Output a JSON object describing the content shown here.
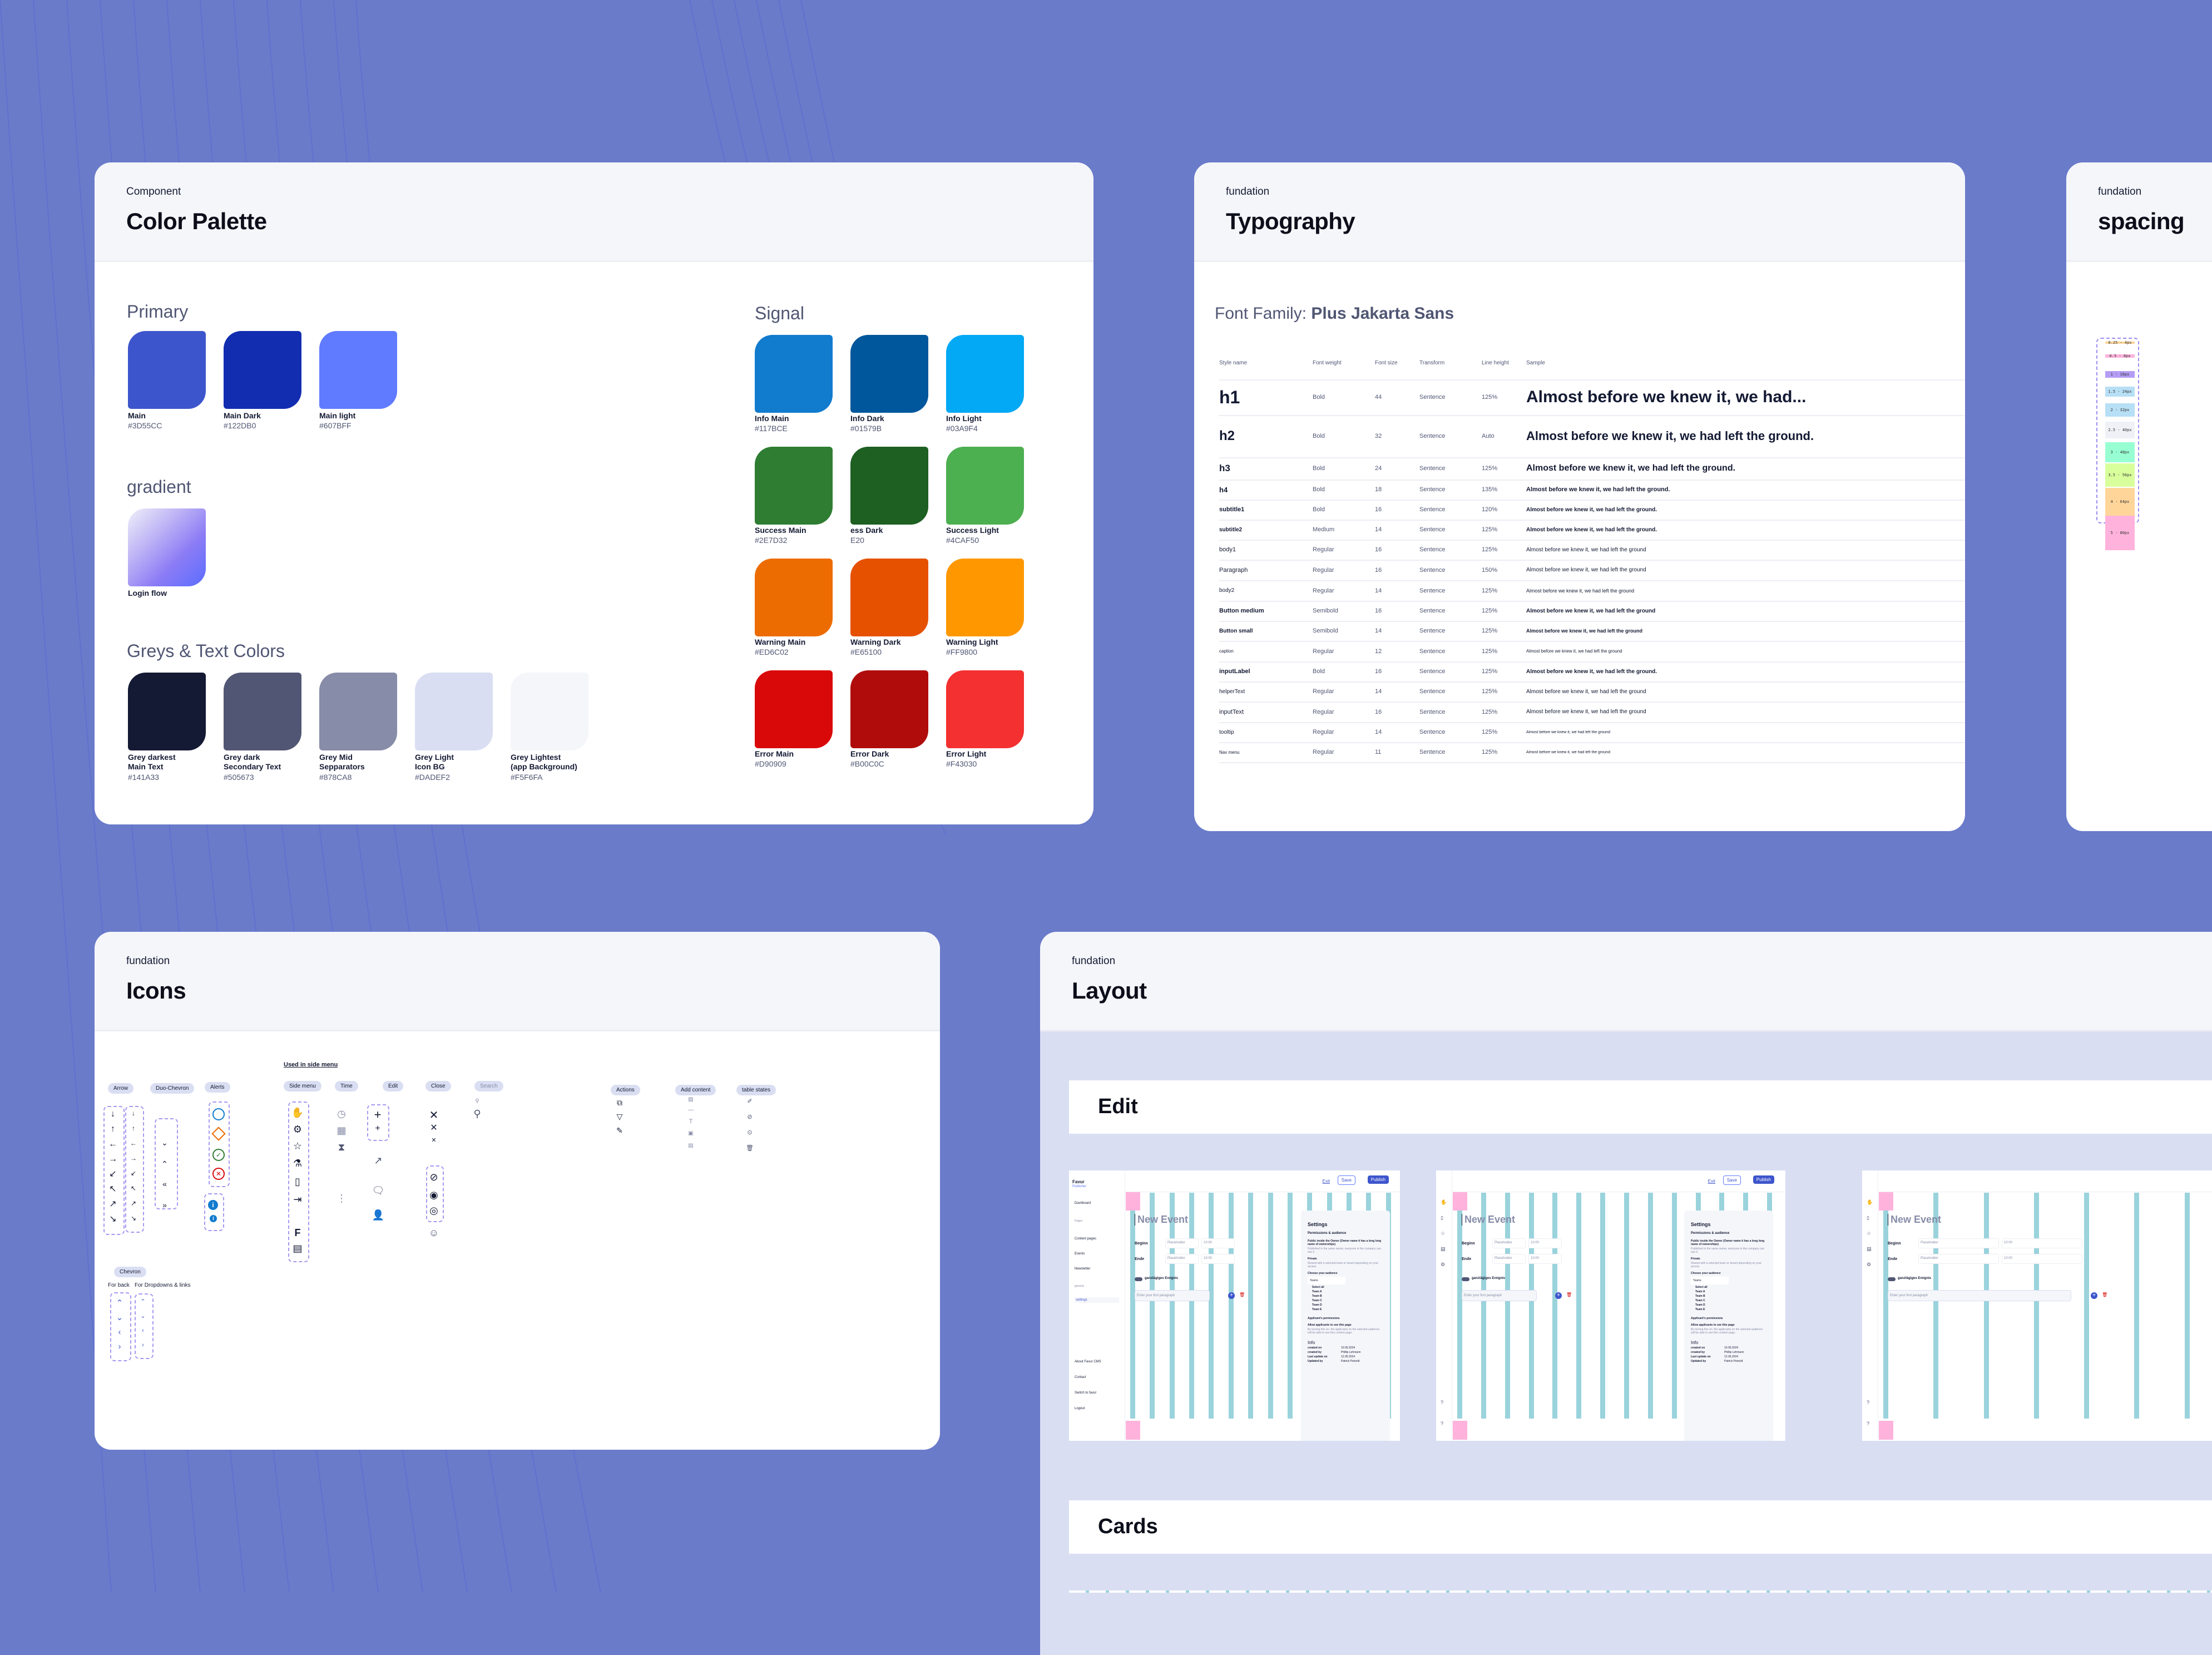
{
  "background_color": "#6A7BCA",
  "color_palette": {
    "kicker": "Component",
    "title": "Color Palette",
    "primary": {
      "title": "Primary",
      "swatches": [
        {
          "name": "Main",
          "hex": "#3D55CC"
        },
        {
          "name": "Main Dark",
          "hex": "#122DB0"
        },
        {
          "name": "Main light",
          "hex": "#607BFF"
        }
      ]
    },
    "gradient": {
      "title": "gradient",
      "swatches": [
        {
          "name": "Login flow",
          "from": "#F0F0FA",
          "mid": "#8C7CF5",
          "to": "#5A6DFF"
        }
      ]
    },
    "greys": {
      "title": "Greys & Text Colors",
      "swatches": [
        {
          "name": "Grey darkest\nMain Text",
          "hex": "#141A33"
        },
        {
          "name": "Grey dark\nSecondary Text",
          "hex": "#505673"
        },
        {
          "name": "Grey Mid\nSepparators",
          "hex": "#878CA8"
        },
        {
          "name": "Grey Light\nIcon BG",
          "hex": "#DADEF2"
        },
        {
          "name": "Grey Lightest\n(app Background)",
          "hex": "#F5F6FA"
        }
      ]
    },
    "signal": {
      "title": "Signal",
      "swatches": [
        {
          "name": "Info Main",
          "hex": "#117BCE"
        },
        {
          "name": "Info Dark",
          "hex": "#01579B"
        },
        {
          "name": "Info Light",
          "hex": "#03A9F4"
        },
        {
          "name": "Success Main",
          "hex": "#2E7D32"
        },
        {
          "name": "ess Dark",
          "hex": "E20",
          "fill": "#1E5F22"
        },
        {
          "name": "Success Light",
          "hex": "#4CAF50"
        },
        {
          "name": "Warning Main",
          "hex": "#ED6C02"
        },
        {
          "name": "Warning Dark",
          "hex": "#E65100"
        },
        {
          "name": "Warning Light",
          "hex": "#FF9800"
        },
        {
          "name": "Error  Main",
          "hex": "#D90909"
        },
        {
          "name": "Error Dark",
          "hex": "#B00C0C"
        },
        {
          "name": "Error Light",
          "hex": "#F43030"
        }
      ]
    }
  },
  "typography": {
    "kicker": "fundation",
    "title": "Typography",
    "font_family_label": "Font  Family:",
    "font_family_value": "Plus Jakarta Sans",
    "columns": [
      "Style name",
      "Font weight",
      "Font size",
      "Transform",
      "Line height",
      "Sample"
    ],
    "rows": [
      {
        "style": "h1",
        "weight": "Bold",
        "size": "44",
        "transform": "Sentence",
        "line_height": "125%",
        "sample": "Almost before we knew it, we had..."
      },
      {
        "style": "h2",
        "weight": "Bold",
        "size": "32",
        "transform": "Sentence",
        "line_height": "Auto",
        "sample": "Almost before we knew it, we had left the ground."
      },
      {
        "style": "h3",
        "weight": "Bold",
        "size": "24",
        "transform": "Sentence",
        "line_height": "125%",
        "sample": "Almost before we knew it, we had left the ground."
      },
      {
        "style": "h4",
        "weight": "Bold",
        "size": "18",
        "transform": "Sentence",
        "line_height": "135%",
        "sample": "Almost before we knew it, we had left the ground."
      },
      {
        "style": "subtitle1",
        "weight": "Bold",
        "size": "16",
        "transform": "Sentence",
        "line_height": "120%",
        "sample": "Almost before we knew it, we had left the ground."
      },
      {
        "style": "subtitle2",
        "weight": "Medium",
        "size": "14",
        "transform": "Sentence",
        "line_height": "125%",
        "sample": "Almost before we knew it, we had left the ground."
      },
      {
        "style": "body1",
        "weight": "Regular",
        "size": "16",
        "transform": "Sentence",
        "line_height": "125%",
        "sample": "Almost before we knew it, we had left the ground"
      },
      {
        "style": "Paragraph",
        "weight": "Regular",
        "size": "16",
        "transform": "Sentence",
        "line_height": "150%",
        "sample": "Almost before we knew it, we had left the ground"
      },
      {
        "style": "body2",
        "weight": "Regular",
        "size": "14",
        "transform": "Sentence",
        "line_height": "125%",
        "sample": "Almost before we knew it, we had left the ground"
      },
      {
        "style": "Button medium",
        "weight": "Semibold",
        "size": "16",
        "transform": "Sentence",
        "line_height": "125%",
        "sample": "Almost before we knew it, we had left the ground"
      },
      {
        "style": "Button small",
        "weight": "Semibold",
        "size": "14",
        "transform": "Sentence",
        "line_height": "125%",
        "sample": "Almost before we knew it, we had left the ground"
      },
      {
        "style": "caption",
        "weight": "Regular",
        "size": "12",
        "transform": "Sentence",
        "line_height": "125%",
        "sample": "Almost before we knew it, we had left the ground"
      },
      {
        "style": "inputLabel",
        "weight": "Bold",
        "size": "16",
        "transform": "Sentence",
        "line_height": "125%",
        "sample": "Almost before we knew it, we had left the ground."
      },
      {
        "style": "helperText",
        "weight": "Regular",
        "size": "14",
        "transform": "Sentence",
        "line_height": "125%",
        "sample": "Almost before we knew it, we had left the ground"
      },
      {
        "style": "inputText",
        "weight": "Regular",
        "size": "16",
        "transform": "Sentence",
        "line_height": "125%",
        "sample": "Almost before we knew it, we had left the ground"
      },
      {
        "style": "tooltip",
        "weight": "Regular",
        "size": "14",
        "transform": "Sentence",
        "line_height": "125%",
        "sample": "Almost before we knew it, we had left the ground"
      },
      {
        "style": "Nav menu",
        "weight": "Regular",
        "size": "11",
        "transform": "Sentence",
        "line_height": "125%",
        "sample": "Almost before we knew it, we had left the ground"
      }
    ]
  },
  "spacing": {
    "kicker": "fundation",
    "title": "spacing",
    "items": [
      {
        "label": "0.25 - 4px",
        "color": "#FFD59A",
        "h": 4
      },
      {
        "label": "0.5 - 8px",
        "color": "#FFB3DC",
        "h": 6
      },
      {
        "label": "1 - 16px",
        "color": "#B49CF5",
        "h": 12
      },
      {
        "label": "1.5 - 24px",
        "color": "#B7DFF5",
        "h": 18
      },
      {
        "label": "2 - 32px",
        "color": "#B7DFF5",
        "h": 24
      },
      {
        "label": "2.5 - 40px",
        "color": "#F0F1F6",
        "h": 30
      },
      {
        "label": "3 - 48px",
        "color": "#98FFD2",
        "h": 36
      },
      {
        "label": "3.5 - 56px",
        "color": "#D9FF9C",
        "h": 42
      },
      {
        "label": "4 - 64px",
        "color": "#FFD59A",
        "h": 50
      },
      {
        "label": "5 - 80px",
        "color": "#FFB3DC",
        "h": 62
      }
    ]
  },
  "icons": {
    "kicker": "fundation",
    "title": "Icons",
    "side_menu_note": "Used in side menu",
    "groups": {
      "arrow": "Arrow",
      "duo_chevron": "Duo-Chevron",
      "alerts": "Alerts",
      "side_menu": "Side menu",
      "time": "Time",
      "edit": "Edit",
      "close": "Close",
      "search": "Search",
      "actions": "Actions",
      "add_content": "Add content",
      "table_states": "table states",
      "chevron": "Chevron"
    },
    "chevron_sub": {
      "back": "For back",
      "dropdowns": "For Dropdowns & links"
    },
    "arrow_glyphs": [
      "↓",
      "↑",
      "←",
      "→",
      "↙",
      "↖",
      "↗",
      "↘"
    ],
    "duo_chevron_glyphs": [
      "»",
      "«",
      "«",
      "»"
    ],
    "chevron_glyphs": [
      "⌃",
      "⌄",
      "‹",
      "›"
    ]
  },
  "layout": {
    "kicker": "fundation",
    "title": "Layout",
    "sections": [
      "Edit",
      "Cards"
    ],
    "preview": {
      "brand": "Favur",
      "brand_sub": "Publisher",
      "nav": [
        "Dashboard",
        "Content pages",
        "Events",
        "Newsletter",
        "settings"
      ],
      "nav_group_pages": "Pages",
      "nav_group_general": "general",
      "footer_nav": [
        "About Favur CMS",
        "Contact",
        "Switch to favur",
        "Logout"
      ],
      "exit": "Exit",
      "save": "Save",
      "publish": "Publish",
      "event_title": "New Event",
      "beginn": "Beginn",
      "ende": "Ende",
      "date_placeholder": "Placeholder",
      "time_value": "10:00",
      "all_day": "ganztägiges Ereignis",
      "paragraph_placeholder": "Enter your first paragraph",
      "settings_title": "Settings",
      "permissions_title": "Permissions & audience",
      "public_option": "Public inside the Owner (Owner name it has a long long name of ownerships)",
      "public_help": "Published in the same owner, everyone in the company can see it",
      "private_option": "Private",
      "private_help": "Shared with a selected team or tenant depending on your access",
      "choose_audience": "Choose your audience",
      "audience_value": "Teams",
      "teams": [
        "Select all",
        "Team A",
        "Team B",
        "Team C",
        "Team D",
        "Team E"
      ],
      "applicant_title": "Applicant's permissions",
      "applicant_toggle": "Allow applicants to see this page",
      "applicant_help": "By turning this on, the applicants on the selected audience will be able to see this content page.",
      "info_title": "Info",
      "info": [
        {
          "k": "created on",
          "v": "10.05.2024"
        },
        {
          "k": "created by",
          "v": "Phillip Lehmann"
        },
        {
          "k": "Last update on",
          "v": "12.05.2024"
        },
        {
          "k": "Updated by",
          "v": "Patrick Petzold"
        }
      ]
    }
  }
}
